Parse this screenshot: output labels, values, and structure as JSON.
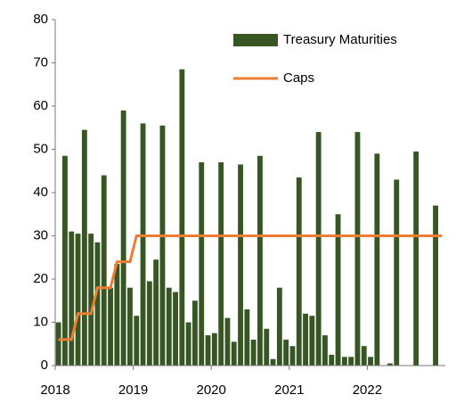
{
  "chart_data": {
    "type": "bar",
    "categories": [
      "2018",
      null,
      null,
      null,
      null,
      null,
      null,
      null,
      null,
      null,
      null,
      null,
      "2019",
      null,
      null,
      null,
      null,
      null,
      null,
      null,
      null,
      null,
      null,
      null,
      "2020",
      null,
      null,
      null,
      null,
      null,
      null,
      null,
      null,
      null,
      null,
      null,
      "2021",
      null,
      null,
      null,
      null,
      null,
      null,
      null,
      null,
      null,
      null,
      null,
      "2022",
      null,
      null,
      null,
      null,
      null,
      null,
      null,
      null,
      null,
      null,
      null
    ],
    "series": [
      {
        "name": "Treasury Maturities",
        "type": "bar",
        "color": "#375623",
        "values": [
          10,
          48.5,
          31,
          30.5,
          54.5,
          30.5,
          28.5,
          44,
          18,
          23.5,
          59,
          18,
          11.5,
          56,
          19.5,
          24.5,
          55.5,
          18,
          17,
          68.5,
          10,
          15,
          47,
          7,
          7.5,
          47,
          11,
          5.5,
          46.5,
          13,
          6,
          48.5,
          8.5,
          1.5,
          18,
          6,
          4.5,
          43.5,
          12,
          11.5,
          54,
          7,
          2.5,
          35,
          2,
          2,
          54,
          4.5,
          2,
          49,
          0,
          0.5,
          43,
          0,
          0,
          49.5,
          0,
          0,
          37,
          0
        ]
      },
      {
        "name": "Caps",
        "type": "line",
        "color": "#ed7d31",
        "values": [
          6,
          6,
          6,
          12,
          12,
          12,
          18,
          18,
          18,
          24,
          24,
          24,
          30,
          30,
          30,
          30,
          30,
          30,
          30,
          30,
          30,
          30,
          30,
          30,
          30,
          30,
          30,
          30,
          30,
          30,
          30,
          30,
          30,
          30,
          30,
          30,
          30,
          30,
          30,
          30,
          30,
          30,
          30,
          30,
          30,
          30,
          30,
          30,
          30,
          30,
          30,
          30,
          30,
          30,
          30,
          30,
          30,
          30,
          30,
          30
        ]
      }
    ],
    "ylim": [
      0,
      80
    ],
    "yticks": [
      0,
      10,
      20,
      30,
      40,
      50,
      60,
      70,
      80
    ],
    "legend": "top-right"
  }
}
